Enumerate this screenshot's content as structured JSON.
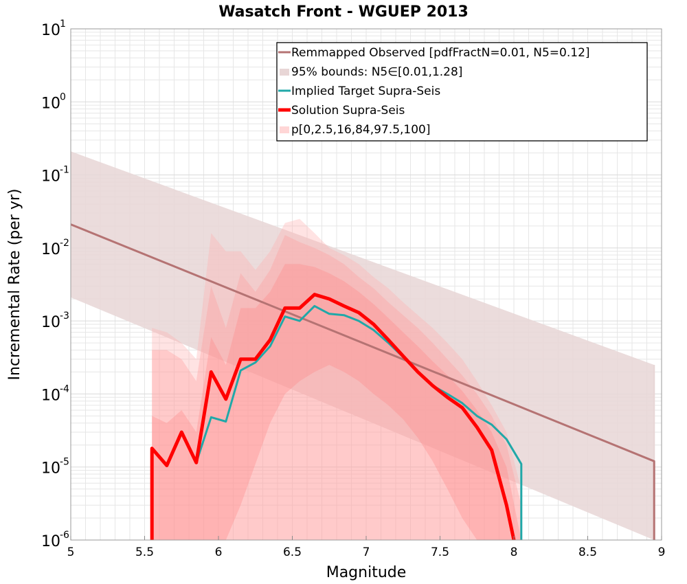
{
  "chart_data": {
    "type": "line",
    "title": "Wasatch Front - WGUEP 2013",
    "xlabel": "Magnitude",
    "ylabel": "Incremental Rate (per yr)",
    "xlim": [
      5,
      9
    ],
    "ylim": [
      1e-06,
      10
    ],
    "yscale": "log",
    "grid": true,
    "legend_position": "top-right",
    "x_ticks": [
      "5",
      "5.5",
      "6",
      "6.5",
      "7",
      "7.5",
      "8",
      "8.5",
      "9"
    ],
    "x_tick_values": [
      5,
      5.5,
      6,
      6.5,
      7,
      7.5,
      8,
      8.5,
      9
    ],
    "y_ticks": [
      {
        "base": "10",
        "exp": "-6",
        "value": 1e-06
      },
      {
        "base": "10",
        "exp": "-5",
        "value": 1e-05
      },
      {
        "base": "10",
        "exp": "-4",
        "value": 0.0001
      },
      {
        "base": "10",
        "exp": "-3",
        "value": 0.001
      },
      {
        "base": "10",
        "exp": "-2",
        "value": 0.01
      },
      {
        "base": "10",
        "exp": "-1",
        "value": 0.1
      },
      {
        "base": "10",
        "exp": "0",
        "value": 1
      },
      {
        "base": "10",
        "exp": "1",
        "value": 10
      }
    ],
    "colors": {
      "observed": "#b57373",
      "observed_band": "#e8d6d6",
      "implied": "#20a8a8",
      "solution": "#ff0000",
      "perc_band": "#ff9a9a",
      "grid": "#e6e6e6"
    },
    "legend": [
      {
        "label": "Remmapped Observed [pdfFractN=0.01, N5=0.12]",
        "kind": "line",
        "color": "#b57373"
      },
      {
        "label": "95% bounds: N5∈[0.01,1.28]",
        "kind": "band",
        "color": "#e8d6d6"
      },
      {
        "label": "Implied Target Supra-Seis",
        "kind": "line",
        "color": "#20a8a8"
      },
      {
        "label": "Solution Supra-Seis",
        "kind": "thick-line",
        "color": "#ff0000"
      },
      {
        "label": "p[0,2.5,16,84,97.5,100]",
        "kind": "band",
        "color": "#ffd6d6"
      }
    ],
    "series": [
      {
        "name": "Remmapped Observed [pdfFractN=0.01, N5=0.12]",
        "x": [
          5.0,
          8.95,
          8.95
        ],
        "y": [
          0.021,
          1.2e-05,
          1e-06
        ]
      },
      {
        "name": "95% bounds: N5∈[0.01,1.28]",
        "x": [
          5.0,
          8.95
        ],
        "lower": [
          0.0021,
          1e-06
        ],
        "upper": [
          0.21,
          0.00025
        ]
      },
      {
        "name": "Implied Target Supra-Seis",
        "x": [
          5.55,
          5.55,
          5.65,
          5.75,
          5.85,
          5.95,
          6.05,
          6.15,
          6.25,
          6.35,
          6.45,
          6.55,
          6.65,
          6.75,
          6.85,
          6.95,
          7.05,
          7.15,
          7.25,
          7.35,
          7.45,
          7.55,
          7.65,
          7.75,
          7.85,
          7.95,
          8.05,
          8.05
        ],
        "y": [
          1e-06,
          1.8e-05,
          1.05e-05,
          3e-05,
          1.15e-05,
          4.8e-05,
          4.2e-05,
          0.00021,
          0.00027,
          0.00045,
          0.00115,
          0.001,
          0.0016,
          0.00125,
          0.0012,
          0.001,
          0.00075,
          0.0005,
          0.00032,
          0.0002,
          0.00013,
          0.0001,
          7.5e-05,
          5e-05,
          3.8e-05,
          2.4e-05,
          1.1e-05,
          1e-06
        ]
      },
      {
        "name": "Solution Supra-Seis",
        "x": [
          5.55,
          5.55,
          5.65,
          5.75,
          5.85,
          5.95,
          6.05,
          6.15,
          6.25,
          6.35,
          6.45,
          6.55,
          6.65,
          6.75,
          6.85,
          6.95,
          7.05,
          7.15,
          7.25,
          7.35,
          7.45,
          7.55,
          7.65,
          7.75,
          7.85,
          7.95,
          8.0
        ],
        "y": [
          1e-06,
          1.8e-05,
          1.05e-05,
          3e-05,
          1.15e-05,
          0.0002,
          8.5e-05,
          0.0003,
          0.0003,
          0.00055,
          0.0015,
          0.0015,
          0.0023,
          0.002,
          0.0016,
          0.0013,
          0.0009,
          0.00055,
          0.00033,
          0.0002,
          0.00013,
          9e-05,
          6.5e-05,
          3.5e-05,
          1.7e-05,
          3e-06,
          1e-06
        ]
      },
      {
        "name": "p[0,2.5,16,84,97.5,100]",
        "x": [
          5.55,
          5.65,
          5.75,
          5.85,
          5.95,
          6.05,
          6.15,
          6.25,
          6.35,
          6.45,
          6.55,
          6.65,
          6.75,
          6.85,
          6.95,
          7.05,
          7.15,
          7.25,
          7.35,
          7.45,
          7.55,
          7.65,
          7.75,
          7.85,
          7.95,
          8.05
        ],
        "p0": [
          1e-06,
          1e-06,
          1e-06,
          1e-06,
          1e-06,
          1e-06,
          1e-06,
          1e-06,
          1e-06,
          1e-06,
          1e-06,
          1e-06,
          1e-06,
          1e-06,
          1e-06,
          1e-06,
          1e-06,
          1e-06,
          1e-06,
          1e-06,
          1e-06,
          1e-06,
          1e-06,
          1e-06,
          1e-06,
          1e-06
        ],
        "p2_5": [
          1e-06,
          1e-06,
          1e-06,
          1e-06,
          1e-06,
          1e-06,
          1e-06,
          1e-06,
          1e-06,
          1e-06,
          1e-06,
          1e-06,
          1e-06,
          1e-06,
          1e-06,
          1e-06,
          1e-06,
          1e-06,
          1e-06,
          1e-06,
          1e-06,
          1e-06,
          1e-06,
          1e-06,
          1e-06,
          1e-06
        ],
        "p16": [
          1e-06,
          1e-06,
          1e-06,
          1e-06,
          1e-06,
          1e-06,
          3e-06,
          1.1e-05,
          4e-05,
          0.0001,
          0.00015,
          0.0002,
          0.00025,
          0.0002,
          0.00015,
          0.0001,
          7e-05,
          4.5e-05,
          2.5e-05,
          1.2e-05,
          5e-06,
          2e-06,
          1e-06,
          1e-06,
          1e-06,
          1e-06
        ],
        "p84": [
          5e-05,
          4e-05,
          6e-05,
          3e-05,
          0.0006,
          0.00025,
          0.0015,
          0.0015,
          0.0025,
          0.006,
          0.006,
          0.0055,
          0.0045,
          0.0035,
          0.0025,
          0.0017,
          0.0011,
          0.0007,
          0.00045,
          0.00028,
          0.00018,
          0.00011,
          6e-05,
          3e-05,
          1e-05,
          1e-06
        ],
        "p97_5": [
          0.0004,
          0.0004,
          0.0003,
          0.00015,
          0.003,
          0.0008,
          0.0045,
          0.0025,
          0.005,
          0.015,
          0.012,
          0.01,
          0.008,
          0.006,
          0.004,
          0.0028,
          0.0018,
          0.0012,
          0.0008,
          0.0005,
          0.0003,
          0.00018,
          0.0001,
          5e-05,
          2e-05,
          3e-06
        ],
        "p100": [
          0.0008,
          0.0007,
          0.0005,
          0.0003,
          0.016,
          0.009,
          0.009,
          0.005,
          0.009,
          0.022,
          0.025,
          0.016,
          0.01,
          0.008,
          0.006,
          0.004,
          0.0028,
          0.0018,
          0.0012,
          0.0008,
          0.0005,
          0.0003,
          0.00015,
          7e-05,
          3e-05,
          5e-06
        ]
      }
    ]
  }
}
